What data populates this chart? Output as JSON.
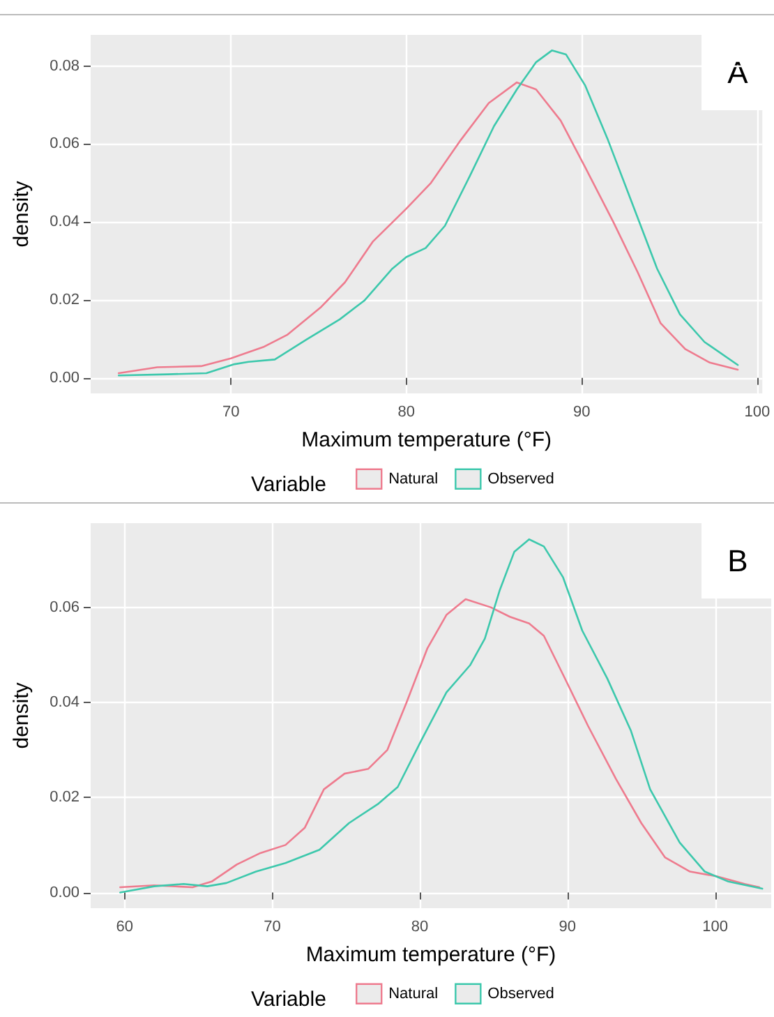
{
  "chart_data": [
    {
      "type": "line",
      "xlabel": "Maximum temperature (°F)",
      "ylabel": "density",
      "legend_title": "Variable",
      "annotations": [
        "A"
      ],
      "xlim": [
        62,
        100.3
      ],
      "xticks": [
        70,
        80,
        90,
        100
      ],
      "ylim": [
        -0.004,
        0.088
      ],
      "yticks": [
        {
          "value": 0,
          "label": "0.00"
        },
        {
          "value": 0.02,
          "label": "0.02"
        },
        {
          "value": 0.04,
          "label": "0.04"
        },
        {
          "value": 0.06,
          "label": "0.06"
        },
        {
          "value": 0.08,
          "label": "0.08"
        }
      ],
      "grid": true,
      "legend": "bottom",
      "marker": "none",
      "line_style": "solid",
      "series": [
        {
          "name": "Natural",
          "color": "#ee7b8e",
          "x": [
            63.6,
            65.8,
            68.3,
            70,
            71.9,
            73.2,
            75.1,
            76.5,
            78.1,
            80,
            81.4,
            83.1,
            84.7,
            86.3,
            87.4,
            88.8,
            90.2,
            91.8,
            93.2,
            94.5,
            95.9,
            97.3,
            98.9
          ],
          "values": [
            0.0012,
            0.0027,
            0.003,
            0.005,
            0.008,
            0.011,
            0.018,
            0.0245,
            0.035,
            0.0434,
            0.05,
            0.061,
            0.0705,
            0.0758,
            0.074,
            0.066,
            0.054,
            0.04,
            0.027,
            0.014,
            0.0074,
            0.0039,
            0.0021
          ]
        },
        {
          "name": "Observed",
          "color": "#3cc8ac",
          "x": [
            63.6,
            66.4,
            68.6,
            70.2,
            71,
            72.5,
            74.3,
            76.2,
            77.6,
            79.2,
            80,
            81.1,
            82.2,
            83.6,
            85,
            86.3,
            87.4,
            88.3,
            89.1,
            90.2,
            91.5,
            92.9,
            94.3,
            95.6,
            97,
            98.9
          ],
          "values": [
            0.0006,
            0.0009,
            0.0012,
            0.0035,
            0.0041,
            0.0047,
            0.0098,
            0.015,
            0.0198,
            0.028,
            0.031,
            0.0333,
            0.039,
            0.0516,
            0.0646,
            0.074,
            0.081,
            0.084,
            0.083,
            0.075,
            0.061,
            0.0445,
            0.028,
            0.0163,
            0.0092,
            0.0033
          ]
        }
      ]
    },
    {
      "type": "line",
      "xlabel": "Maximum temperature (°F)",
      "ylabel": "density",
      "legend_title": "Variable",
      "annotations": [
        "B"
      ],
      "xlim": [
        57.7,
        103.8
      ],
      "xticks": [
        60,
        70,
        80,
        90,
        100
      ],
      "ylim": [
        -0.0033,
        0.0777
      ],
      "yticks": [
        {
          "value": 0,
          "label": "0.00"
        },
        {
          "value": 0.02,
          "label": "0.02"
        },
        {
          "value": 0.04,
          "label": "0.04"
        },
        {
          "value": 0.06,
          "label": "0.06"
        }
      ],
      "grid": true,
      "legend": "bottom",
      "marker": "none",
      "line_style": "solid",
      "series": [
        {
          "name": "Natural",
          "color": "#ee7b8e",
          "x": [
            59.7,
            62,
            64.6,
            65.9,
            67.6,
            69.2,
            70.9,
            72.2,
            73.5,
            74.9,
            76.5,
            77.8,
            79.1,
            80.5,
            81.8,
            83.1,
            84.8,
            86.1,
            87.4,
            88.4,
            89.8,
            91.4,
            93.3,
            95,
            96.6,
            98.3,
            100.1,
            102,
            103
          ],
          "values": [
            0.0011,
            0.0015,
            0.0011,
            0.0023,
            0.0059,
            0.0083,
            0.01,
            0.0136,
            0.0217,
            0.025,
            0.026,
            0.03,
            0.04,
            0.0513,
            0.0584,
            0.0617,
            0.06,
            0.058,
            0.0566,
            0.054,
            0.0452,
            0.035,
            0.0238,
            0.0146,
            0.0074,
            0.0044,
            0.0034,
            0.0018,
            0.0011
          ]
        },
        {
          "name": "Observed",
          "color": "#3cc8ac",
          "x": [
            59.7,
            62,
            64,
            65.6,
            66.9,
            68.9,
            70.9,
            73.2,
            75.2,
            77.2,
            78.5,
            80.1,
            81.8,
            83.4,
            84.4,
            85.4,
            86.4,
            87.4,
            88.4,
            89.7,
            91,
            92.7,
            94.3,
            95.6,
            97.6,
            99.3,
            100.9,
            103.2
          ],
          "values": [
            0,
            0.0013,
            0.0018,
            0.0013,
            0.002,
            0.0044,
            0.0062,
            0.009,
            0.0146,
            0.0187,
            0.0222,
            0.032,
            0.0421,
            0.0478,
            0.0534,
            0.0635,
            0.0717,
            0.0743,
            0.0728,
            0.0663,
            0.0551,
            0.045,
            0.034,
            0.0217,
            0.0105,
            0.0044,
            0.0023,
            0.0008
          ]
        }
      ]
    }
  ]
}
